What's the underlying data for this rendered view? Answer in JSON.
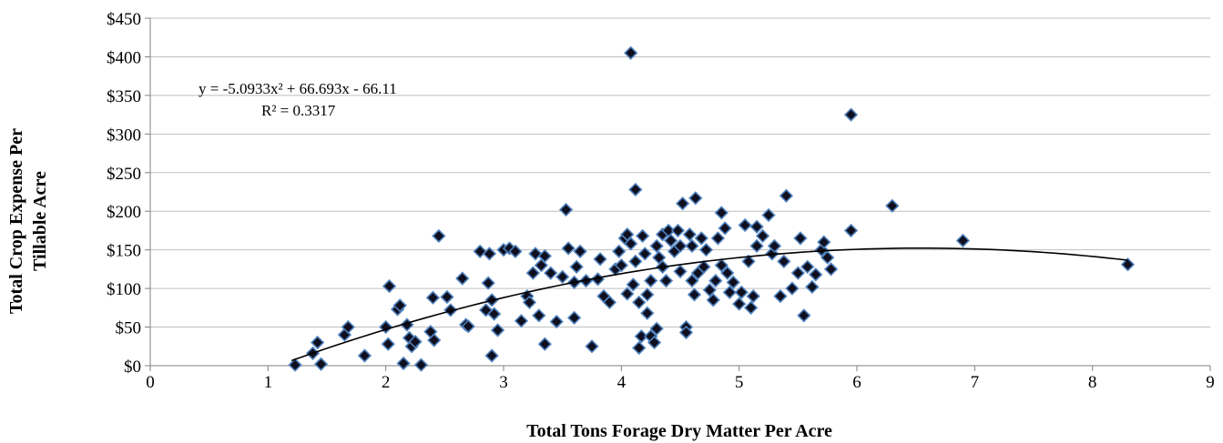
{
  "chart_data": {
    "type": "scatter",
    "title": "",
    "xlabel": "Total Tons Forage Dry Matter Per Acre",
    "ylabel_lines": [
      "Total Crop Expense Per",
      "Tillable Acre"
    ],
    "xlim": [
      0,
      9
    ],
    "ylim": [
      0,
      450
    ],
    "x_ticks": [
      0,
      1,
      2,
      3,
      4,
      5,
      6,
      7,
      8,
      9
    ],
    "y_ticks": [
      0,
      50,
      100,
      150,
      200,
      250,
      300,
      350,
      400,
      450
    ],
    "y_tick_labels": [
      "$0",
      "$50",
      "$100",
      "$150",
      "$200",
      "$250",
      "$300",
      "$350",
      "$400",
      "$450"
    ],
    "grid": {
      "horizontal": true,
      "vertical": false
    },
    "colors": {
      "marker_fill": "#0f0f1f",
      "marker_edge": "#4f81bd",
      "trendline": "#000000",
      "gridline": "#bfbfbf"
    },
    "trendline": {
      "type": "polynomial",
      "coefficients": {
        "a": -5.0933,
        "b": 66.693,
        "c": -66.11
      },
      "x_range": [
        1.2,
        8.3
      ],
      "equation_label": "y = -5.0933x² + 66.693x - 66.11",
      "r2_label": "R² = 0.3317"
    },
    "points": [
      [
        1.23,
        1
      ],
      [
        1.38,
        16
      ],
      [
        1.42,
        30
      ],
      [
        1.45,
        2
      ],
      [
        1.65,
        40
      ],
      [
        1.68,
        50
      ],
      [
        1.82,
        13
      ],
      [
        2.0,
        50
      ],
      [
        2.02,
        28
      ],
      [
        2.03,
        103
      ],
      [
        2.1,
        73
      ],
      [
        2.12,
        78
      ],
      [
        2.15,
        3
      ],
      [
        2.18,
        53
      ],
      [
        2.2,
        36
      ],
      [
        2.22,
        25
      ],
      [
        2.25,
        31
      ],
      [
        2.3,
        1
      ],
      [
        2.38,
        44
      ],
      [
        2.4,
        88
      ],
      [
        2.41,
        33
      ],
      [
        2.45,
        168
      ],
      [
        2.52,
        89
      ],
      [
        2.55,
        72
      ],
      [
        2.65,
        113
      ],
      [
        2.68,
        53
      ],
      [
        2.7,
        51
      ],
      [
        2.8,
        148
      ],
      [
        2.85,
        72
      ],
      [
        2.87,
        107
      ],
      [
        2.88,
        145
      ],
      [
        2.9,
        85
      ],
      [
        2.9,
        13
      ],
      [
        2.92,
        67
      ],
      [
        2.95,
        46
      ],
      [
        3.0,
        150
      ],
      [
        3.05,
        152
      ],
      [
        3.1,
        148
      ],
      [
        3.15,
        58
      ],
      [
        3.2,
        90
      ],
      [
        3.22,
        82
      ],
      [
        3.25,
        120
      ],
      [
        3.27,
        145
      ],
      [
        3.3,
        65
      ],
      [
        3.32,
        130
      ],
      [
        3.35,
        28
      ],
      [
        3.35,
        142
      ],
      [
        3.4,
        120
      ],
      [
        3.45,
        57
      ],
      [
        3.5,
        115
      ],
      [
        3.53,
        202
      ],
      [
        3.55,
        152
      ],
      [
        3.6,
        62
      ],
      [
        3.6,
        108
      ],
      [
        3.62,
        128
      ],
      [
        3.65,
        148
      ],
      [
        3.7,
        110
      ],
      [
        3.75,
        25
      ],
      [
        3.8,
        112
      ],
      [
        3.82,
        138
      ],
      [
        3.85,
        90
      ],
      [
        3.9,
        82
      ],
      [
        3.95,
        125
      ],
      [
        3.98,
        148
      ],
      [
        4.0,
        130
      ],
      [
        4.03,
        165
      ],
      [
        4.05,
        93
      ],
      [
        4.05,
        170
      ],
      [
        4.08,
        405
      ],
      [
        4.08,
        158
      ],
      [
        4.1,
        105
      ],
      [
        4.12,
        228
      ],
      [
        4.12,
        135
      ],
      [
        4.15,
        82
      ],
      [
        4.15,
        23
      ],
      [
        4.17,
        38
      ],
      [
        4.18,
        168
      ],
      [
        4.2,
        145
      ],
      [
        4.22,
        92
      ],
      [
        4.22,
        68
      ],
      [
        4.25,
        110
      ],
      [
        4.25,
        38
      ],
      [
        4.28,
        30
      ],
      [
        4.3,
        155
      ],
      [
        4.3,
        48
      ],
      [
        4.32,
        140
      ],
      [
        4.35,
        170
      ],
      [
        4.35,
        128
      ],
      [
        4.38,
        110
      ],
      [
        4.4,
        175
      ],
      [
        4.42,
        162
      ],
      [
        4.45,
        148
      ],
      [
        4.48,
        175
      ],
      [
        4.5,
        155
      ],
      [
        4.5,
        122
      ],
      [
        4.52,
        210
      ],
      [
        4.55,
        50
      ],
      [
        4.55,
        43
      ],
      [
        4.58,
        170
      ],
      [
        4.6,
        155
      ],
      [
        4.6,
        110
      ],
      [
        4.62,
        92
      ],
      [
        4.63,
        217
      ],
      [
        4.65,
        120
      ],
      [
        4.68,
        165
      ],
      [
        4.7,
        128
      ],
      [
        4.72,
        150
      ],
      [
        4.75,
        98
      ],
      [
        4.78,
        85
      ],
      [
        4.8,
        110
      ],
      [
        4.82,
        165
      ],
      [
        4.85,
        130
      ],
      [
        4.85,
        198
      ],
      [
        4.88,
        178
      ],
      [
        4.9,
        120
      ],
      [
        4.92,
        95
      ],
      [
        4.95,
        108
      ],
      [
        5.0,
        80
      ],
      [
        5.02,
        95
      ],
      [
        5.05,
        182
      ],
      [
        5.08,
        135
      ],
      [
        5.1,
        75
      ],
      [
        5.12,
        90
      ],
      [
        5.15,
        180
      ],
      [
        5.15,
        155
      ],
      [
        5.2,
        168
      ],
      [
        5.25,
        195
      ],
      [
        5.28,
        145
      ],
      [
        5.3,
        155
      ],
      [
        5.35,
        90
      ],
      [
        5.38,
        135
      ],
      [
        5.4,
        220
      ],
      [
        5.45,
        100
      ],
      [
        5.5,
        120
      ],
      [
        5.52,
        165
      ],
      [
        5.55,
        65
      ],
      [
        5.58,
        128
      ],
      [
        5.62,
        102
      ],
      [
        5.65,
        118
      ],
      [
        5.7,
        150
      ],
      [
        5.72,
        160
      ],
      [
        5.75,
        140
      ],
      [
        5.78,
        125
      ],
      [
        5.95,
        175
      ],
      [
        5.95,
        325
      ],
      [
        6.3,
        207
      ],
      [
        6.9,
        162
      ],
      [
        8.3,
        131
      ]
    ]
  }
}
